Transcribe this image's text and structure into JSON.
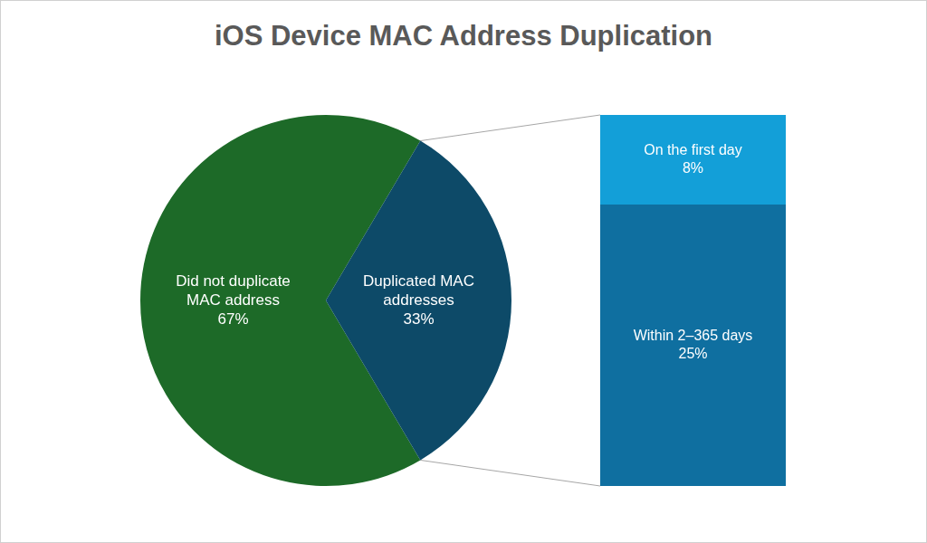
{
  "chart_data": [
    {
      "type": "pie",
      "title": "iOS Device MAC Address Duplication",
      "categories": [
        "Did not duplicate MAC address",
        "Duplicated MAC addresses"
      ],
      "values": [
        67,
        33
      ],
      "value_labels": [
        "67%",
        "33%"
      ],
      "colors": [
        "#1d6a28",
        "#0d4a68"
      ],
      "data_labels": true
    },
    {
      "type": "bar",
      "stacked": true,
      "categories": [
        null
      ],
      "series": [
        {
          "name": "Within 2–365 days",
          "color": "#0f6fa0",
          "values": [
            25
          ],
          "value_labels": [
            "25%"
          ]
        },
        {
          "name": "On the first day",
          "color": "#139fd8",
          "values": [
            8
          ],
          "value_labels": [
            "8%"
          ]
        }
      ],
      "ylim": [
        0,
        33
      ],
      "tick_labels": false,
      "data_labels": true
    }
  ]
}
